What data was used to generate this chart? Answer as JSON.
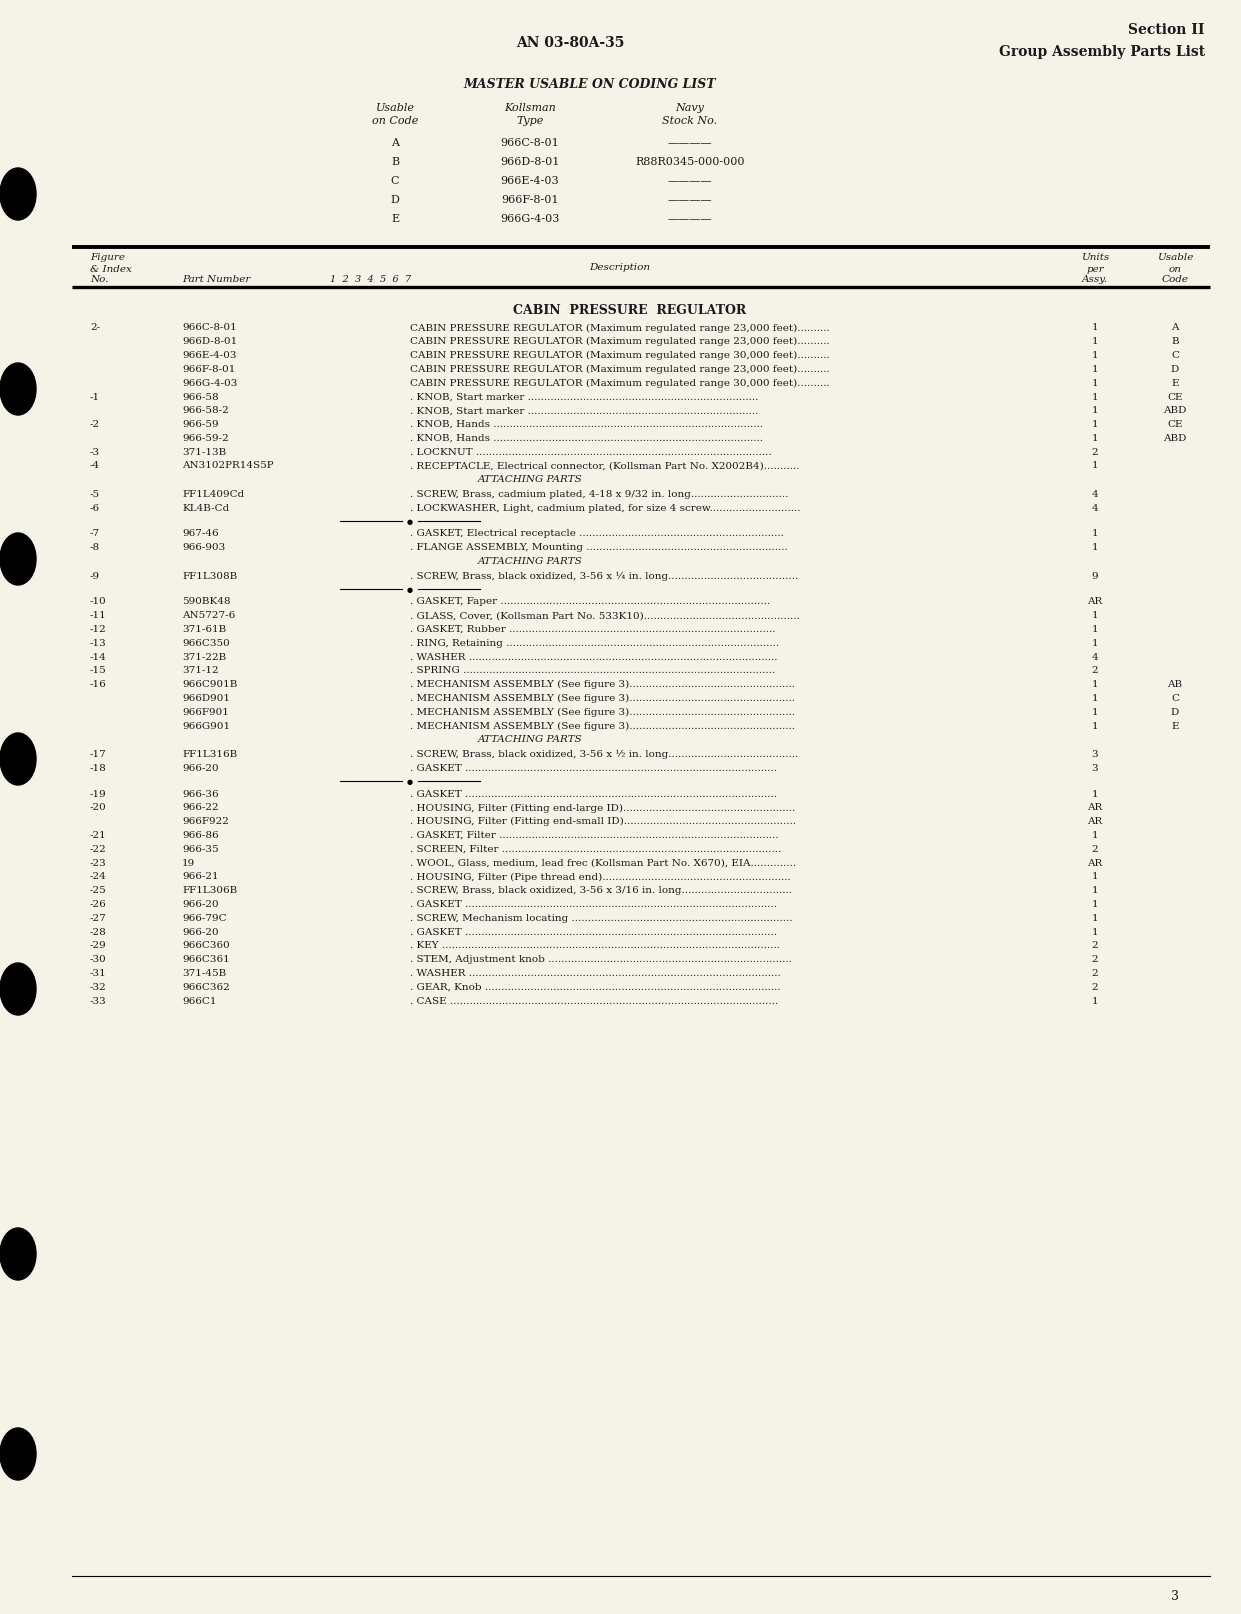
{
  "bg_color": "#f5f2e8",
  "page_number": "3",
  "header_left": "AN 03-80A-35",
  "header_right_line1": "Section II",
  "header_right_line2": "Group Assembly Parts List",
  "master_title": "MASTER USABLE ON CODING LIST",
  "master_rows": [
    [
      "A",
      "966C-8-01",
      "————"
    ],
    [
      "B",
      "966D-8-01",
      "R88R0345-000-000"
    ],
    [
      "C",
      "966E-4-03",
      "————"
    ],
    [
      "D",
      "966F-8-01",
      "————"
    ],
    [
      "E",
      "966G-4-03",
      "————"
    ]
  ],
  "rows": [
    {
      "fig": "2-",
      "part": "966C-8-01",
      "desc": "CABIN PRESSURE REGULATOR (Maximum regulated range 23,000 feet)..........",
      "units": "1",
      "code": "A",
      "type": "data"
    },
    {
      "fig": "",
      "part": "966D-8-01",
      "desc": "CABIN PRESSURE REGULATOR (Maximum regulated range 23,000 feet)..........",
      "units": "1",
      "code": "B",
      "type": "data"
    },
    {
      "fig": "",
      "part": "966E-4-03",
      "desc": "CABIN PRESSURE REGULATOR (Maximum regulated range 30,000 feet)..........",
      "units": "1",
      "code": "C",
      "type": "data"
    },
    {
      "fig": "",
      "part": "966F-8-01",
      "desc": "CABIN PRESSURE REGULATOR (Maximum regulated range 23,000 feet)..........",
      "units": "1",
      "code": "D",
      "type": "data"
    },
    {
      "fig": "",
      "part": "966G-4-03",
      "desc": "CABIN PRESSURE REGULATOR (Maximum regulated range 30,000 feet)..........",
      "units": "1",
      "code": "E",
      "type": "data"
    },
    {
      "fig": "-1",
      "part": "966-58",
      "desc": ". KNOB, Start marker .......................................................................",
      "units": "1",
      "code": "CE",
      "type": "data"
    },
    {
      "fig": "",
      "part": "966-58-2",
      "desc": ". KNOB, Start marker .......................................................................",
      "units": "1",
      "code": "ABD",
      "type": "data"
    },
    {
      "fig": "-2",
      "part": "966-59",
      "desc": ". KNOB, Hands ...................................................................................",
      "units": "1",
      "code": "CE",
      "type": "data"
    },
    {
      "fig": "",
      "part": "966-59-2",
      "desc": ". KNOB, Hands ...................................................................................",
      "units": "1",
      "code": "ABD",
      "type": "data"
    },
    {
      "fig": "-3",
      "part": "371-13B",
      "desc": ". LOCKNUT ...........................................................................................",
      "units": "2",
      "code": "",
      "type": "data"
    },
    {
      "fig": "-4",
      "part": "AN3102PR14S5P",
      "desc": ". RECEPTACLE, Electrical connector, (Kollsman Part No. X2002B4)...........",
      "units": "1",
      "code": "",
      "type": "data"
    },
    {
      "fig": "",
      "part": "",
      "desc": "ATTACHING PARTS",
      "units": "",
      "code": "",
      "type": "section"
    },
    {
      "fig": "-5",
      "part": "FF1L409Cd",
      "desc": ". SCREW, Brass, cadmium plated, 4-18 x 9/32 in. long..............................",
      "units": "4",
      "code": "",
      "type": "data"
    },
    {
      "fig": "-6",
      "part": "KL4B-Cd",
      "desc": ". LOCKWASHER, Light, cadmium plated, for size 4 screw............................",
      "units": "4",
      "code": "",
      "type": "data"
    },
    {
      "fig": "",
      "part": "",
      "desc": "*",
      "units": "",
      "code": "",
      "type": "star"
    },
    {
      "fig": "-7",
      "part": "967-46",
      "desc": ". GASKET, Electrical receptacle ...............................................................",
      "units": "1",
      "code": "",
      "type": "data"
    },
    {
      "fig": "-8",
      "part": "966-903",
      "desc": ". FLANGE ASSEMBLY, Mounting ..............................................................",
      "units": "1",
      "code": "",
      "type": "data"
    },
    {
      "fig": "",
      "part": "",
      "desc": "ATTACHING PARTS",
      "units": "",
      "code": "",
      "type": "section"
    },
    {
      "fig": "-9",
      "part": "FF1L308B",
      "desc": ". SCREW, Brass, black oxidized, 3-56 x ¼ in. long........................................",
      "units": "9",
      "code": "",
      "type": "data"
    },
    {
      "fig": "",
      "part": "",
      "desc": "*",
      "units": "",
      "code": "",
      "type": "star"
    },
    {
      "fig": "-10",
      "part": "590BK48",
      "desc": ". GASKET, Faper ...................................................................................",
      "units": "AR",
      "code": "",
      "type": "data"
    },
    {
      "fig": "-11",
      "part": "AN5727-6",
      "desc": ". GLASS, Cover, (Kollsman Part No. 533K10)................................................",
      "units": "1",
      "code": "",
      "type": "data"
    },
    {
      "fig": "-12",
      "part": "371-61B",
      "desc": ". GASKET, Rubber ..................................................................................",
      "units": "1",
      "code": "",
      "type": "data"
    },
    {
      "fig": "-13",
      "part": "966C350",
      "desc": ". RING, Retaining ....................................................................................",
      "units": "1",
      "code": "",
      "type": "data"
    },
    {
      "fig": "-14",
      "part": "371-22B",
      "desc": ". WASHER ...............................................................................................",
      "units": "4",
      "code": "",
      "type": "data"
    },
    {
      "fig": "-15",
      "part": "371-12",
      "desc": ". SPRING ................................................................................................",
      "units": "2",
      "code": "",
      "type": "data"
    },
    {
      "fig": "-16",
      "part": "966C901B",
      "desc": ". MECHANISM ASSEMBLY (See figure 3)...................................................",
      "units": "1",
      "code": "AB",
      "type": "data"
    },
    {
      "fig": "",
      "part": "966D901",
      "desc": ". MECHANISM ASSEMBLY (See figure 3)...................................................",
      "units": "1",
      "code": "C",
      "type": "data"
    },
    {
      "fig": "",
      "part": "966F901",
      "desc": ". MECHANISM ASSEMBLY (See figure 3)...................................................",
      "units": "1",
      "code": "D",
      "type": "data"
    },
    {
      "fig": "",
      "part": "966G901",
      "desc": ". MECHANISM ASSEMBLY (See figure 3)...................................................",
      "units": "1",
      "code": "E",
      "type": "data"
    },
    {
      "fig": "",
      "part": "",
      "desc": "ATTACHING PARTS",
      "units": "",
      "code": "",
      "type": "section"
    },
    {
      "fig": "-17",
      "part": "FF1L316B",
      "desc": ". SCREW, Brass, black oxidized, 3-56 x ½ in. long........................................",
      "units": "3",
      "code": "",
      "type": "data"
    },
    {
      "fig": "-18",
      "part": "966-20",
      "desc": ". GASKET ................................................................................................",
      "units": "3",
      "code": "",
      "type": "data"
    },
    {
      "fig": "",
      "part": "",
      "desc": "*",
      "units": "",
      "code": "",
      "type": "star"
    },
    {
      "fig": "-19",
      "part": "966-36",
      "desc": ". GASKET ................................................................................................",
      "units": "1",
      "code": "",
      "type": "data"
    },
    {
      "fig": "-20",
      "part": "966-22",
      "desc": ". HOUSING, Filter (Fitting end-large ID).....................................................",
      "units": "AR",
      "code": "",
      "type": "data"
    },
    {
      "fig": "",
      "part": "966F922",
      "desc": ". HOUSING, Filter (Fitting end-small ID).....................................................",
      "units": "AR",
      "code": "",
      "type": "data"
    },
    {
      "fig": "-21",
      "part": "966-86",
      "desc": ". GASKET, Filter ......................................................................................",
      "units": "1",
      "code": "",
      "type": "data"
    },
    {
      "fig": "-22",
      "part": "966-35",
      "desc": ". SCREEN, Filter ......................................................................................",
      "units": "2",
      "code": "",
      "type": "data"
    },
    {
      "fig": "-23",
      "part": "19",
      "desc": ". WOOL, Glass, medium, lead frec (Kollsman Part No. X670), EIA..............",
      "units": "AR",
      "code": "",
      "type": "data"
    },
    {
      "fig": "-24",
      "part": "966-21",
      "desc": ". HOUSING, Filter (Pipe thread end)..........................................................",
      "units": "1",
      "code": "",
      "type": "data"
    },
    {
      "fig": "-25",
      "part": "FF1L306B",
      "desc": ". SCREW, Brass, black oxidized, 3-56 x 3/16 in. long..................................",
      "units": "1",
      "code": "",
      "type": "data"
    },
    {
      "fig": "-26",
      "part": "966-20",
      "desc": ". GASKET ................................................................................................",
      "units": "1",
      "code": "",
      "type": "data"
    },
    {
      "fig": "-27",
      "part": "966-79C",
      "desc": ". SCREW, Mechanism locating ....................................................................",
      "units": "1",
      "code": "",
      "type": "data"
    },
    {
      "fig": "-28",
      "part": "966-20",
      "desc": ". GASKET ................................................................................................",
      "units": "1",
      "code": "",
      "type": "data"
    },
    {
      "fig": "-29",
      "part": "966C360",
      "desc": ". KEY ........................................................................................................",
      "units": "2",
      "code": "",
      "type": "data"
    },
    {
      "fig": "-30",
      "part": "966C361",
      "desc": ". STEM, Adjustment knob ...........................................................................",
      "units": "2",
      "code": "",
      "type": "data"
    },
    {
      "fig": "-31",
      "part": "371-45B",
      "desc": ". WASHER ................................................................................................",
      "units": "2",
      "code": "",
      "type": "data"
    },
    {
      "fig": "-32",
      "part": "966C362",
      "desc": ". GEAR, Knob ...........................................................................................",
      "units": "2",
      "code": "",
      "type": "data"
    },
    {
      "fig": "-33",
      "part": "966C1",
      "desc": ". CASE .....................................................................................................",
      "units": "1",
      "code": "",
      "type": "data"
    }
  ]
}
